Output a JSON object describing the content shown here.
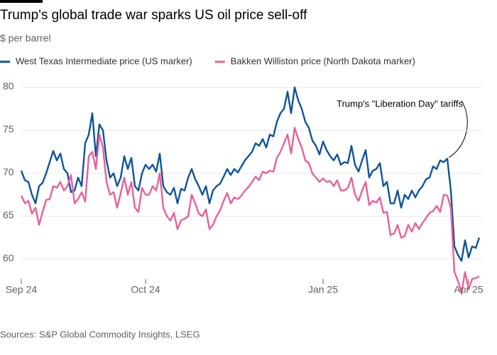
{
  "chart_data": {
    "type": "line",
    "title": "Trump's global trade war sparks US oil price sell-off",
    "subtitle": "$ per barrel",
    "source": "Sources: S&P Global Commodity Insights, LSEG",
    "annotation": "Trump's \"Liberation Day\" tariffs",
    "ylim": [
      55.5,
      81
    ],
    "yticks": [
      60,
      65,
      70,
      75,
      80
    ],
    "grid": true,
    "legend": "top",
    "categories": [
      "Sep 24",
      null,
      null,
      null,
      null,
      null,
      null,
      null,
      null,
      null,
      null,
      null,
      null,
      null,
      null,
      null,
      null,
      null,
      null,
      null,
      null,
      null,
      null,
      null,
      null,
      null,
      null,
      null,
      null,
      null,
      null,
      null,
      null,
      null,
      null,
      "Oct 24",
      null,
      null,
      null,
      null,
      null,
      null,
      null,
      null,
      null,
      null,
      null,
      null,
      null,
      null,
      null,
      null,
      null,
      null,
      null,
      null,
      null,
      null,
      null,
      null,
      null,
      null,
      null,
      null,
      null,
      null,
      null,
      null,
      null,
      null,
      null,
      null,
      null,
      null,
      null,
      null,
      null,
      null,
      null,
      null,
      null,
      null,
      null,
      null,
      null,
      "Jan 25",
      null,
      null,
      null,
      null,
      null,
      null,
      null,
      null,
      null,
      null,
      null,
      null,
      null,
      null,
      null,
      null,
      null,
      null,
      null,
      null,
      null,
      null,
      null,
      null,
      null,
      null,
      null,
      null,
      null,
      null,
      null,
      null,
      null,
      null,
      null,
      null,
      null,
      null,
      null,
      null,
      "Apr 25",
      null,
      null,
      null
    ],
    "series": [
      {
        "name": "West Texas Intermediate price (US marker)",
        "color": "#0f5499",
        "values": [
          70.3,
          69.2,
          69,
          67.5,
          66.5,
          68.5,
          68.9,
          70,
          71.3,
          72.6,
          71.5,
          72.3,
          70.5,
          70,
          67.8,
          68,
          69.5,
          68.5,
          73.5,
          74.5,
          77,
          72,
          75.7,
          75,
          71.5,
          69.5,
          70,
          68.5,
          69.5,
          72,
          70.5,
          71.8,
          68.5,
          68,
          70,
          71,
          70.5,
          71,
          70.2,
          72.3,
          68.5,
          67.8,
          67.5,
          68.3,
          66.5,
          68.2,
          68,
          69.5,
          70.5,
          69.3,
          68.5,
          67.5,
          68.5,
          66.5,
          68,
          68.5,
          68.8,
          69.6,
          70.5,
          69.8,
          70.5,
          70.1,
          70.8,
          71.5,
          72,
          72.5,
          73.5,
          73.2,
          74,
          73,
          74.5,
          74.3,
          76,
          77,
          77.5,
          79.5,
          77,
          80,
          78.5,
          77.5,
          76,
          75.3,
          73.8,
          73.2,
          72.2,
          73.7,
          72.7,
          72,
          71.5,
          72.2,
          71,
          71.3,
          71.2,
          73.2,
          71,
          70.2,
          71.5,
          72.7,
          69.5,
          70.3,
          70.5,
          71.2,
          68.5,
          69,
          66.5,
          66.5,
          68,
          66,
          67.5,
          67,
          68,
          67.2,
          68,
          68.5,
          69.3,
          69.5,
          70.8,
          70.5,
          71.5,
          71.3,
          71.7,
          68,
          61.5,
          60.5,
          59.8,
          62.2,
          60.2,
          61.5,
          61.3,
          62.5
        ]
      },
      {
        "name": "Bakken Williston price (North Dakota marker)",
        "color": "#e8609a",
        "values": [
          67.4,
          66.5,
          66.8,
          65.3,
          66,
          64,
          65.5,
          66.9,
          67,
          68.5,
          68.3,
          69,
          68,
          68.5,
          69.8,
          66.5,
          67,
          67.8,
          66.7,
          72,
          72.5,
          70.5,
          74.5,
          73,
          69,
          67.5,
          67.8,
          66,
          67.7,
          69.5,
          67.5,
          69,
          66,
          65.5,
          68.3,
          67.5,
          67.5,
          68.5,
          68,
          70,
          66,
          65,
          64.5,
          65.4,
          63.5,
          64.5,
          64.7,
          65,
          67.5,
          66.5,
          65.3,
          65,
          65.8,
          63.5,
          64,
          65,
          65.7,
          66.8,
          67.7,
          66.5,
          67.2,
          67,
          67.4,
          68,
          68.4,
          69,
          69.6,
          69.2,
          70.2,
          70,
          70.3,
          70.2,
          71.8,
          72.5,
          73.5,
          74.5,
          72.3,
          75.3,
          74,
          73,
          71.5,
          71.2,
          70,
          69.5,
          69,
          69.4,
          69,
          69.1,
          68.5,
          69.2,
          68,
          68,
          68.3,
          69.5,
          67.5,
          66.8,
          68,
          69,
          66.3,
          66.8,
          66.6,
          67.2,
          65.4,
          65.5,
          62.8,
          63,
          64,
          62.5,
          62.7,
          64,
          63.2,
          64.2,
          63.5,
          64.2,
          64.8,
          65.4,
          65.6,
          66.2,
          65.5,
          67.5,
          67.4,
          66,
          58.5,
          57.5,
          56.1,
          58.5,
          56.5,
          57.7,
          57.8,
          58
        ]
      }
    ]
  }
}
